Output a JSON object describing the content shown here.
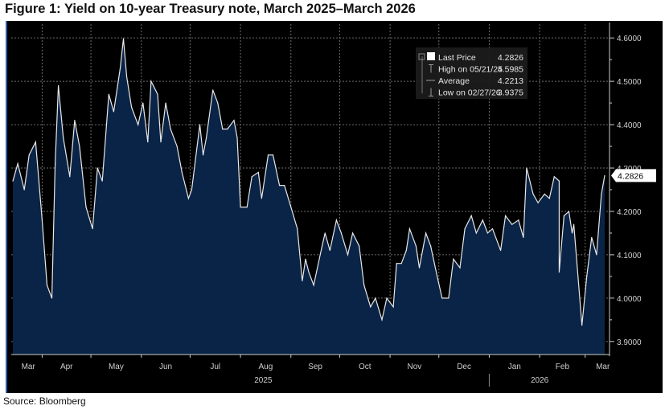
{
  "title": "Figure 1: Yield on 10-year Treasury note, March 2025–March 2026",
  "source": "Source: Bloomberg",
  "chart_data": {
    "type": "area",
    "title": "Figure 1: Yield on 10-year Treasury note, March 2025–March 2026",
    "xlabel": "",
    "ylabel": "",
    "ylim": [
      3.87,
      4.63
    ],
    "xlim": [
      "2025-03-13",
      "2026-03-14"
    ],
    "grid": true,
    "y_axis_side": "right",
    "legend_placement": "top-right",
    "colors": {
      "background": "#000000",
      "fill": "#0a2447",
      "line": "#e8e8e8",
      "grid": "#6b6b6b"
    },
    "y_ticks": [
      "4.6000",
      "4.5000",
      "4.4000",
      "4.3000",
      "4.2000",
      "4.1000",
      "4.0000",
      "3.9000"
    ],
    "y_tick_values": [
      4.6,
      4.5,
      4.4,
      4.3,
      4.2,
      4.1,
      4.0,
      3.9
    ],
    "month_labels": [
      "Mar",
      "Apr",
      "May",
      "Jun",
      "Jul",
      "Aug",
      "Sep",
      "Oct",
      "Nov",
      "Dec",
      "Jan",
      "Feb",
      "Mar"
    ],
    "month_dates": [
      "2025-03-01",
      "2025-04-01",
      "2025-05-01",
      "2025-06-01",
      "2025-07-01",
      "2025-08-01",
      "2025-09-01",
      "2025-10-01",
      "2025-11-01",
      "2025-12-01",
      "2026-01-01",
      "2026-02-01",
      "2026-03-01"
    ],
    "year_labels": [
      {
        "label": "2025",
        "date": "2025-08-15"
      },
      {
        "label": "2026",
        "date": "2026-02-01"
      }
    ],
    "last_price_label": "4.2826",
    "legend": [
      {
        "label": "Last Price",
        "value": "4.2826",
        "icon": "white-square"
      },
      {
        "label": "High on 05/21/25",
        "value": "4.5985",
        "icon": "high-marker"
      },
      {
        "label": "Average",
        "value": "4.2213",
        "icon": "average-marker"
      },
      {
        "label": "Low on 02/27/26",
        "value": "3.9375",
        "icon": "low-marker"
      }
    ],
    "series": [
      {
        "points": [
          [
            "2025-03-14",
            4.27
          ],
          [
            "2025-03-17",
            4.31
          ],
          [
            "2025-03-21",
            4.25
          ],
          [
            "2025-03-24",
            4.33
          ],
          [
            "2025-03-28",
            4.36
          ],
          [
            "2025-04-01",
            4.18
          ],
          [
            "2025-04-04",
            4.03
          ],
          [
            "2025-04-07",
            4.0
          ],
          [
            "2025-04-09",
            4.31
          ],
          [
            "2025-04-11",
            4.49
          ],
          [
            "2025-04-14",
            4.37
          ],
          [
            "2025-04-18",
            4.28
          ],
          [
            "2025-04-21",
            4.41
          ],
          [
            "2025-04-24",
            4.35
          ],
          [
            "2025-04-28",
            4.21
          ],
          [
            "2025-05-02",
            4.16
          ],
          [
            "2025-05-05",
            4.3
          ],
          [
            "2025-05-08",
            4.27
          ],
          [
            "2025-05-12",
            4.47
          ],
          [
            "2025-05-15",
            4.43
          ],
          [
            "2025-05-19",
            4.53
          ],
          [
            "2025-05-21",
            4.5985
          ],
          [
            "2025-05-23",
            4.51
          ],
          [
            "2025-05-26",
            4.44
          ],
          [
            "2025-05-30",
            4.4
          ],
          [
            "2025-06-02",
            4.45
          ],
          [
            "2025-06-05",
            4.36
          ],
          [
            "2025-06-07",
            4.5
          ],
          [
            "2025-06-11",
            4.47
          ],
          [
            "2025-06-13",
            4.36
          ],
          [
            "2025-06-16",
            4.45
          ],
          [
            "2025-06-19",
            4.39
          ],
          [
            "2025-06-23",
            4.35
          ],
          [
            "2025-06-26",
            4.29
          ],
          [
            "2025-06-30",
            4.23
          ],
          [
            "2025-07-02",
            4.25
          ],
          [
            "2025-07-07",
            4.4
          ],
          [
            "2025-07-09",
            4.33
          ],
          [
            "2025-07-11",
            4.37
          ],
          [
            "2025-07-15",
            4.48
          ],
          [
            "2025-07-18",
            4.45
          ],
          [
            "2025-07-21",
            4.39
          ],
          [
            "2025-07-24",
            4.39
          ],
          [
            "2025-07-28",
            4.41
          ],
          [
            "2025-07-30",
            4.37
          ],
          [
            "2025-08-01",
            4.21
          ],
          [
            "2025-08-05",
            4.21
          ],
          [
            "2025-08-08",
            4.28
          ],
          [
            "2025-08-12",
            4.29
          ],
          [
            "2025-08-14",
            4.23
          ],
          [
            "2025-08-18",
            4.33
          ],
          [
            "2025-08-21",
            4.33
          ],
          [
            "2025-08-25",
            4.26
          ],
          [
            "2025-08-28",
            4.26
          ],
          [
            "2025-09-01",
            4.21
          ],
          [
            "2025-09-05",
            4.16
          ],
          [
            "2025-09-08",
            4.04
          ],
          [
            "2025-09-10",
            4.09
          ],
          [
            "2025-09-12",
            4.06
          ],
          [
            "2025-09-15",
            4.03
          ],
          [
            "2025-09-19",
            4.1
          ],
          [
            "2025-09-22",
            4.15
          ],
          [
            "2025-09-25",
            4.11
          ],
          [
            "2025-09-29",
            4.18
          ],
          [
            "2025-10-02",
            4.15
          ],
          [
            "2025-10-06",
            4.1
          ],
          [
            "2025-10-09",
            4.15
          ],
          [
            "2025-10-13",
            4.12
          ],
          [
            "2025-10-16",
            4.03
          ],
          [
            "2025-10-20",
            3.98
          ],
          [
            "2025-10-23",
            4.0
          ],
          [
            "2025-10-27",
            3.95
          ],
          [
            "2025-10-30",
            4.0
          ],
          [
            "2025-11-03",
            3.98
          ],
          [
            "2025-11-05",
            4.08
          ],
          [
            "2025-11-08",
            4.08
          ],
          [
            "2025-11-11",
            4.11
          ],
          [
            "2025-11-13",
            4.16
          ],
          [
            "2025-11-17",
            4.12
          ],
          [
            "2025-11-19",
            4.07
          ],
          [
            "2025-11-23",
            4.15
          ],
          [
            "2025-11-26",
            4.12
          ],
          [
            "2025-11-30",
            4.05
          ],
          [
            "2025-12-03",
            4.0
          ],
          [
            "2025-12-07",
            4.0
          ],
          [
            "2025-12-10",
            4.09
          ],
          [
            "2025-12-14",
            4.07
          ],
          [
            "2025-12-17",
            4.16
          ],
          [
            "2025-12-21",
            4.19
          ],
          [
            "2025-12-24",
            4.15
          ],
          [
            "2025-12-28",
            4.18
          ],
          [
            "2025-12-31",
            4.15
          ],
          [
            "2026-01-03",
            4.16
          ],
          [
            "2026-01-08",
            4.11
          ],
          [
            "2026-01-11",
            4.19
          ],
          [
            "2026-01-15",
            4.17
          ],
          [
            "2026-01-19",
            4.18
          ],
          [
            "2026-01-22",
            4.14
          ],
          [
            "2026-01-24",
            4.3
          ],
          [
            "2026-01-28",
            4.24
          ],
          [
            "2026-01-31",
            4.22
          ],
          [
            "2026-02-04",
            4.24
          ],
          [
            "2026-02-07",
            4.23
          ],
          [
            "2026-02-10",
            4.28
          ],
          [
            "2026-02-13",
            4.27
          ],
          [
            "2026-02-16",
            4.19
          ],
          [
            "2026-02-19",
            4.2
          ],
          [
            "2026-02-21",
            4.15
          ],
          [
            "2026-02-22",
            4.17
          ],
          [
            "2026-02-13",
            4.06
          ],
          [
            "2026-02-27",
            3.9375
          ],
          [
            "2026-03-02",
            4.05
          ],
          [
            "2026-03-05",
            4.14
          ],
          [
            "2026-03-08",
            4.1
          ],
          [
            "2026-03-11",
            4.24
          ],
          [
            "2026-03-13",
            4.2826
          ]
        ]
      }
    ]
  }
}
